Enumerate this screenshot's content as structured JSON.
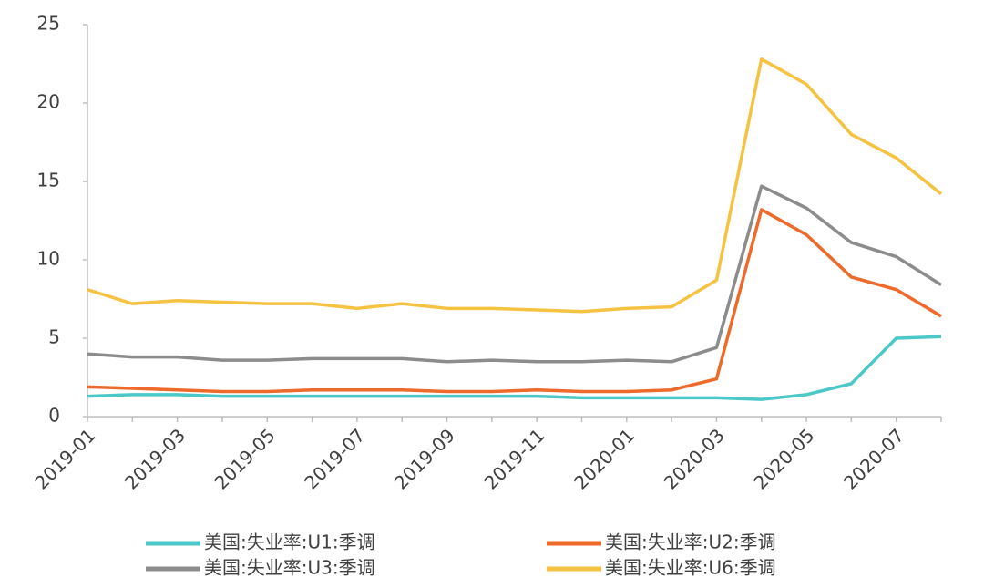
{
  "chart_data": {
    "type": "line",
    "categories": [
      "2019-01",
      null,
      "2019-03",
      null,
      "2019-05",
      null,
      "2019-07",
      null,
      "2019-09",
      null,
      "2019-11",
      null,
      "2020-01",
      null,
      "2020-03",
      null,
      "2020-05",
      null,
      "2020-07",
      null
    ],
    "series": [
      {
        "name": "美国:失业率:U1:季调",
        "color": "#4dc8c8",
        "values": [
          1.3,
          1.4,
          1.4,
          1.3,
          1.3,
          1.3,
          1.3,
          1.3,
          1.3,
          1.3,
          1.3,
          1.2,
          1.2,
          1.2,
          1.2,
          1.1,
          1.4,
          2.1,
          5.0,
          5.1
        ]
      },
      {
        "name": "美国:失业率:U2:季调",
        "color": "#ee6a2a",
        "values": [
          1.9,
          1.8,
          1.7,
          1.6,
          1.6,
          1.7,
          1.7,
          1.7,
          1.6,
          1.6,
          1.7,
          1.6,
          1.6,
          1.7,
          2.4,
          13.2,
          11.6,
          8.9,
          8.1,
          6.4
        ]
      },
      {
        "name": "美国:失业率:U3:季调",
        "color": "#8c8c8c",
        "values": [
          4.0,
          3.8,
          3.8,
          3.6,
          3.6,
          3.7,
          3.7,
          3.7,
          3.5,
          3.6,
          3.5,
          3.5,
          3.6,
          3.5,
          4.4,
          14.7,
          13.3,
          11.1,
          10.2,
          8.4
        ]
      },
      {
        "name": "美国:失业率:U6:季调",
        "color": "#f5c242",
        "values": [
          8.1,
          7.2,
          7.4,
          7.3,
          7.2,
          7.2,
          6.9,
          7.2,
          6.9,
          6.9,
          6.8,
          6.7,
          6.9,
          7.0,
          8.7,
          22.8,
          21.2,
          18.0,
          16.5,
          14.2
        ]
      }
    ],
    "ylim": [
      0,
      25
    ],
    "yticks": [
      0,
      5,
      10,
      15,
      20,
      25
    ],
    "grid": false
  }
}
